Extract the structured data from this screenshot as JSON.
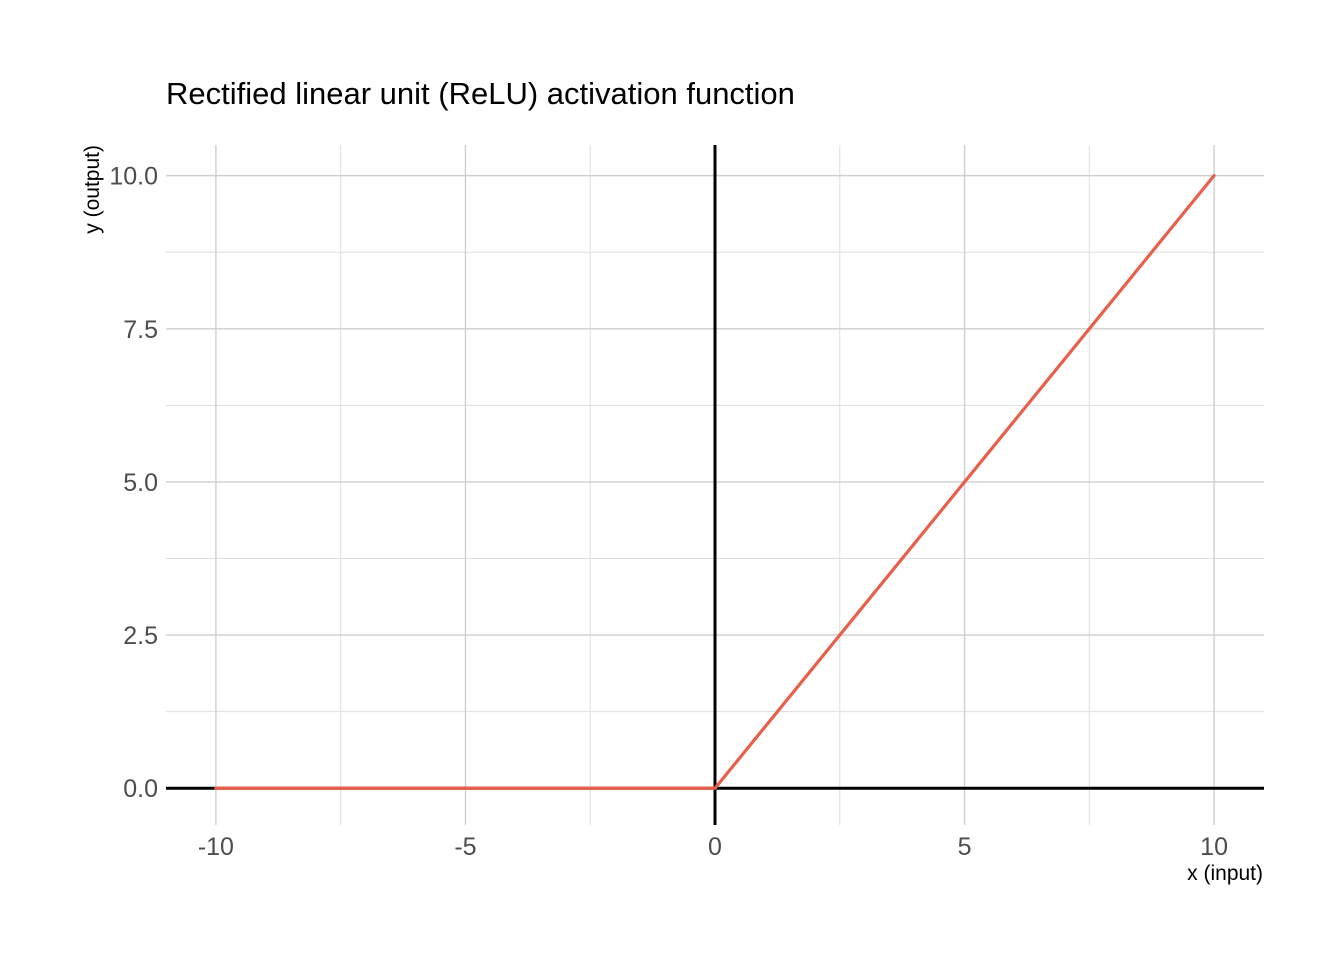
{
  "chart_data": {
    "type": "line",
    "title": "Rectified linear unit (ReLU) activation function",
    "xlabel": "x (input)",
    "ylabel": "y (output)",
    "xlim": [
      -11,
      11
    ],
    "ylim": [
      -0.6,
      10.5
    ],
    "x_ticks": [
      -10,
      -5,
      0,
      5,
      10
    ],
    "x_tick_labels": [
      "-10",
      "-5",
      "0",
      "5",
      "10"
    ],
    "y_ticks": [
      0,
      2.5,
      5,
      7.5,
      10
    ],
    "y_tick_labels": [
      "0.0",
      "2.5",
      "5.0",
      "7.5",
      "10.0"
    ],
    "x_minor_ticks": [
      -7.5,
      -2.5,
      2.5,
      7.5
    ],
    "y_minor_ticks": [
      1.25,
      3.75,
      6.25,
      8.75
    ],
    "grid": true,
    "reference_lines": {
      "x": 0,
      "y": 0,
      "color": "#000000"
    },
    "series": [
      {
        "color": "#E8604C",
        "x": [
          -10,
          0,
          10
        ],
        "y": [
          0,
          0,
          10
        ]
      }
    ]
  }
}
